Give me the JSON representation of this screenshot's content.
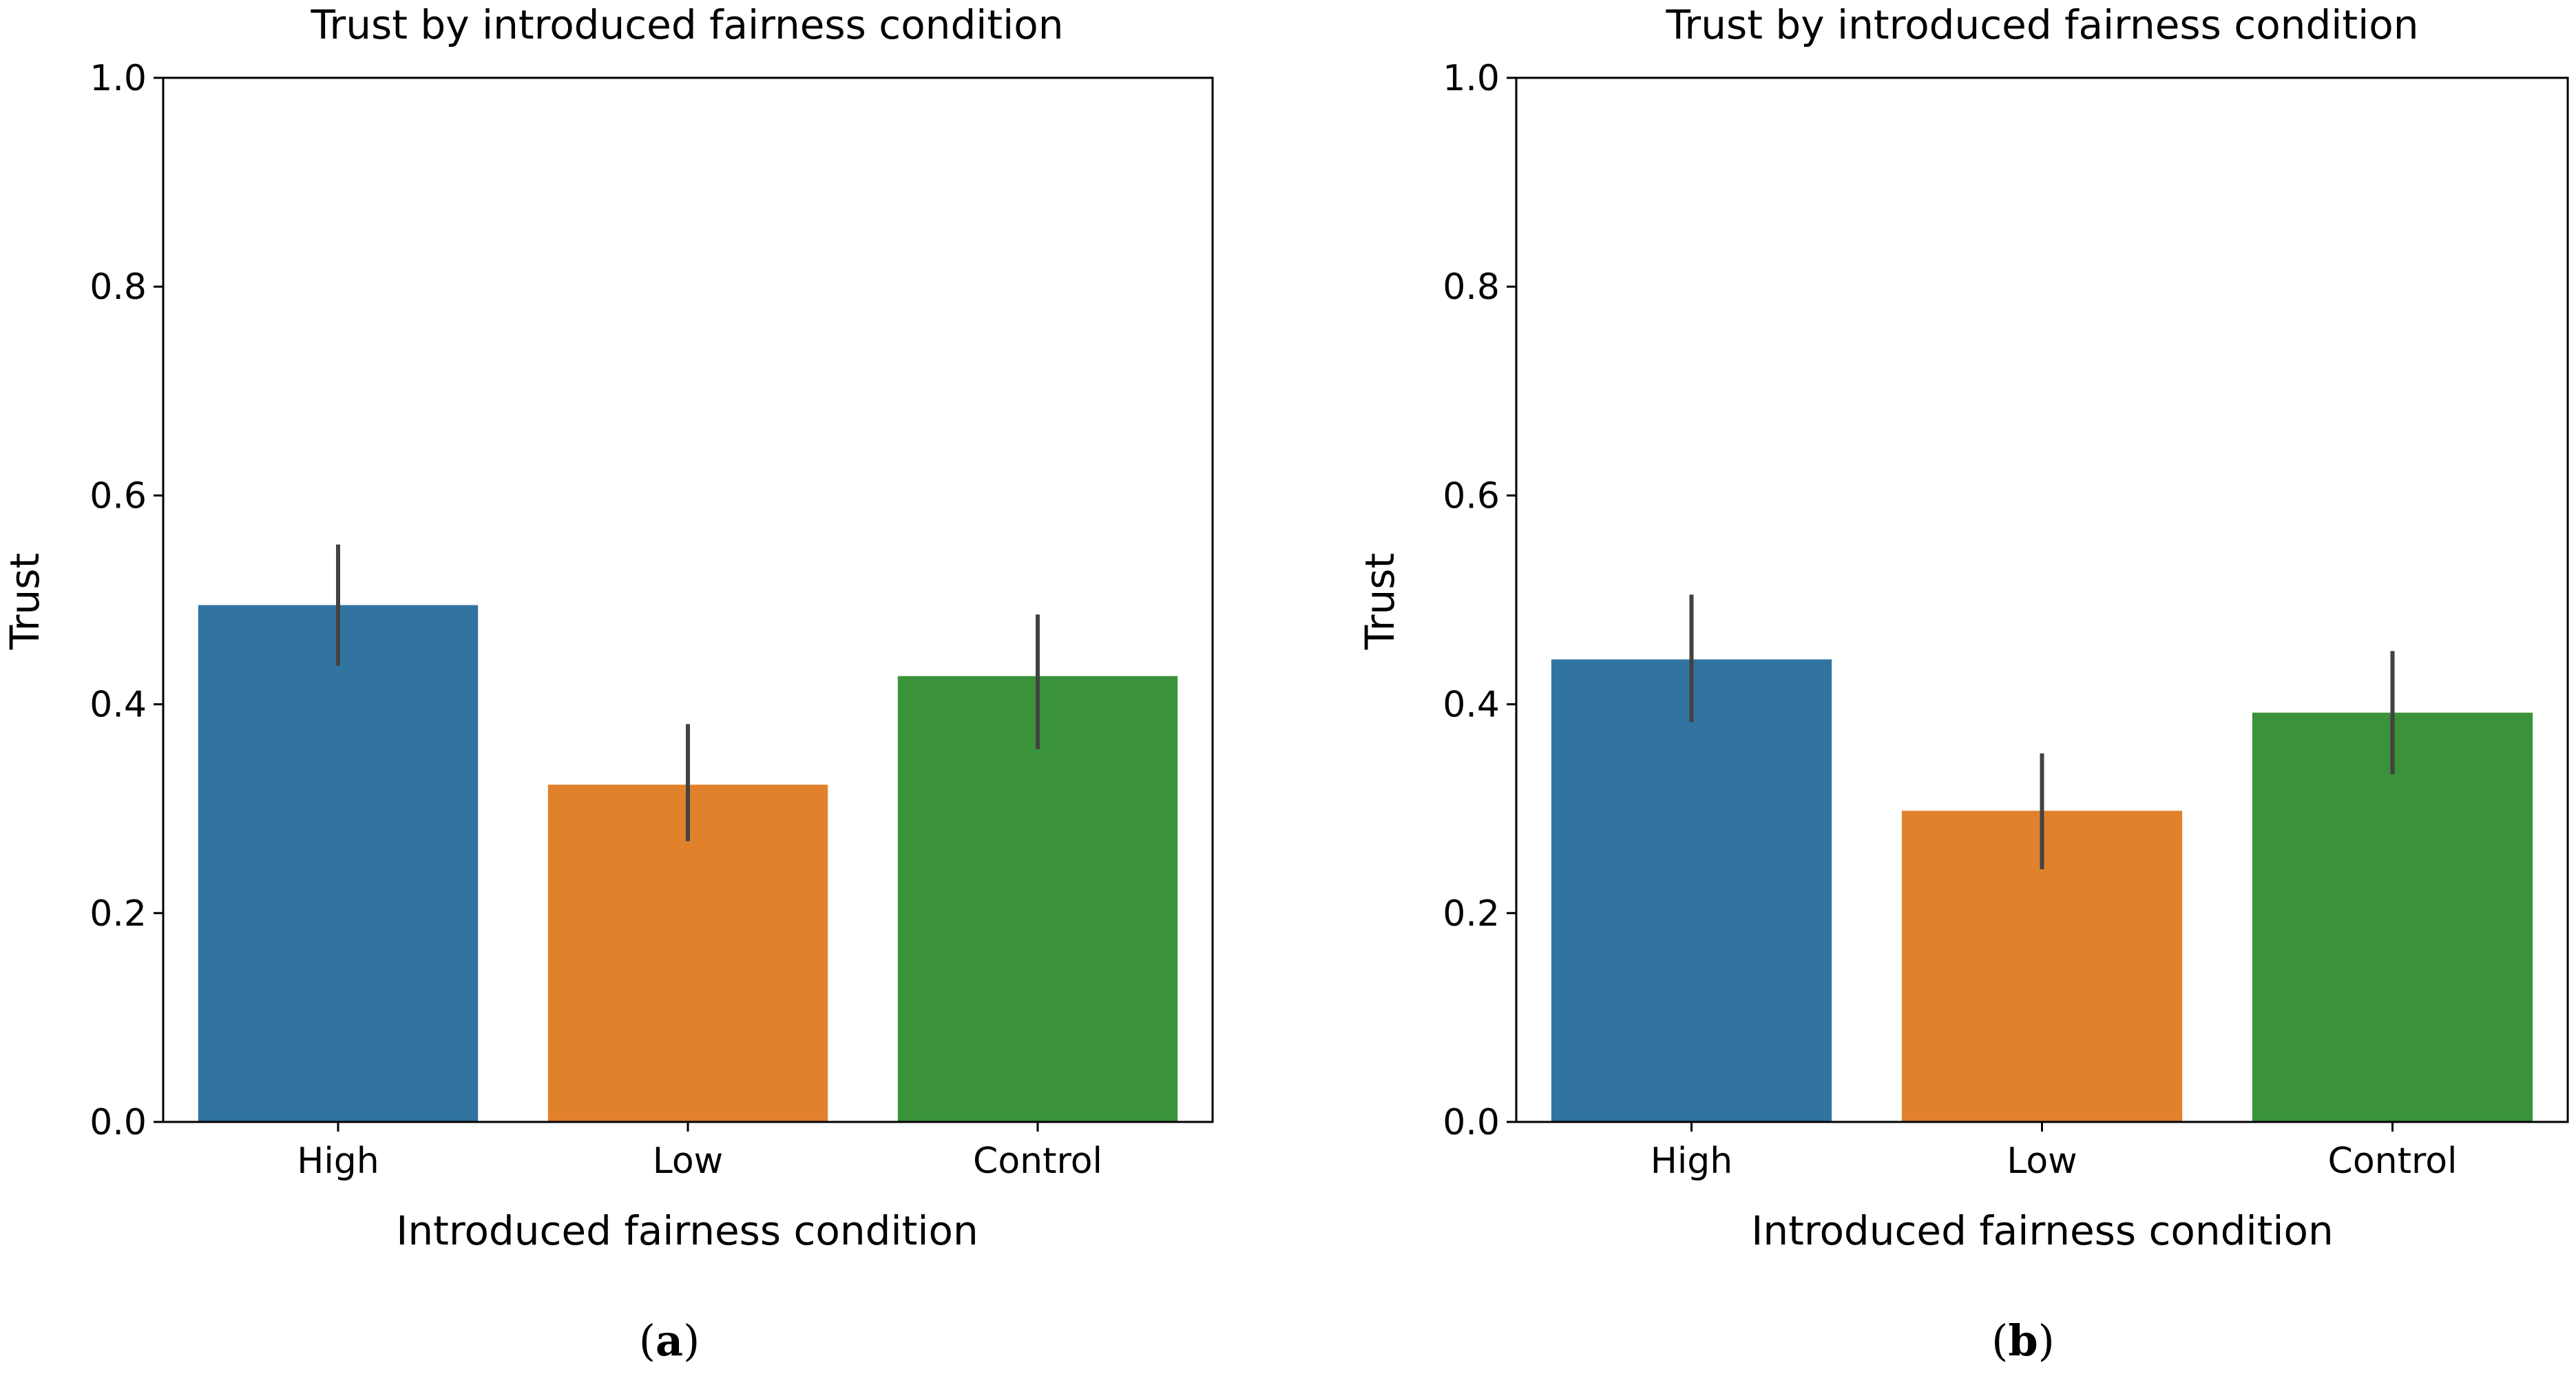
{
  "chart_data": [
    {
      "type": "bar",
      "title": "Trust by introduced fairness condition",
      "xlabel": "Introduced fairness condition",
      "ylabel": "Trust",
      "categories": [
        "High",
        "Low",
        "Control"
      ],
      "values": [
        0.495,
        0.323,
        0.427
      ],
      "error_low": [
        0.437,
        0.269,
        0.357
      ],
      "error_high": [
        0.553,
        0.381,
        0.486
      ],
      "colors": [
        "#3274a1",
        "#e1812c",
        "#3a923a"
      ],
      "ylim": [
        0.0,
        1.0
      ],
      "yticks": [
        "0.0",
        "0.2",
        "0.4",
        "0.6",
        "0.8",
        "1.0"
      ],
      "grid": false,
      "caption_letter": "a"
    },
    {
      "type": "bar",
      "title": "Trust by introduced fairness condition",
      "xlabel": "Introduced fairness condition",
      "ylabel": "Trust",
      "categories": [
        "High",
        "Low",
        "Control"
      ],
      "values": [
        0.443,
        0.298,
        0.392
      ],
      "error_low": [
        0.383,
        0.242,
        0.333
      ],
      "error_high": [
        0.505,
        0.353,
        0.451
      ],
      "colors": [
        "#3274a1",
        "#e1812c",
        "#3a923a"
      ],
      "ylim": [
        0.0,
        1.0
      ],
      "yticks": [
        "0.0",
        "0.2",
        "0.4",
        "0.6",
        "0.8",
        "1.0"
      ],
      "grid": false,
      "caption_letter": "b"
    }
  ]
}
